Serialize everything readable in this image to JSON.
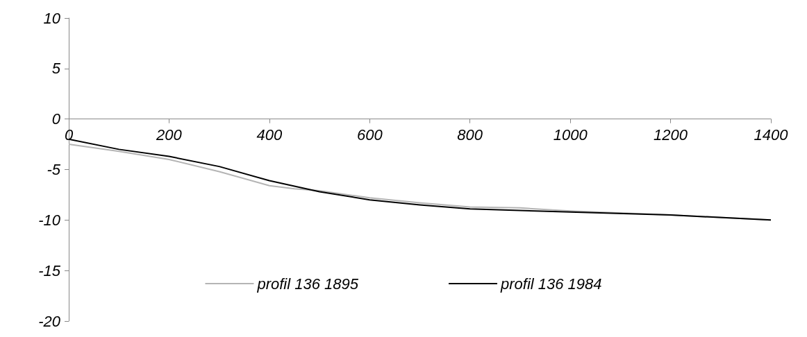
{
  "chart_data": {
    "type": "line",
    "series": [
      {
        "name": "profil 136 1895",
        "color": "#b4b4b4",
        "x": [
          0,
          100,
          200,
          300,
          400,
          450,
          500,
          600,
          700,
          800,
          900,
          1000,
          1200,
          1400
        ],
        "values": [
          -2.5,
          -3.2,
          -4.0,
          -5.2,
          -6.6,
          -6.9,
          -7.1,
          -7.8,
          -8.3,
          -8.7,
          -8.8,
          -9.1,
          -9.5,
          -10.0
        ]
      },
      {
        "name": "profil 136 1984",
        "color": "#000000",
        "x": [
          0,
          100,
          200,
          300,
          400,
          500,
          600,
          700,
          800,
          1000,
          1200,
          1400
        ],
        "values": [
          -2.0,
          -3.0,
          -3.7,
          -4.7,
          -6.1,
          -7.2,
          -8.0,
          -8.5,
          -8.9,
          -9.2,
          -9.5,
          -10.0
        ]
      }
    ],
    "xlim": [
      0,
      1400
    ],
    "xticks": [
      0,
      200,
      400,
      600,
      800,
      1000,
      1200,
      1400
    ],
    "ylim": [
      -20,
      10
    ],
    "yticks": [
      -20,
      -15,
      -10,
      -5,
      0,
      5,
      10
    ],
    "grid": false,
    "legend": "bottom",
    "marker": "none",
    "line_style": "solid"
  }
}
